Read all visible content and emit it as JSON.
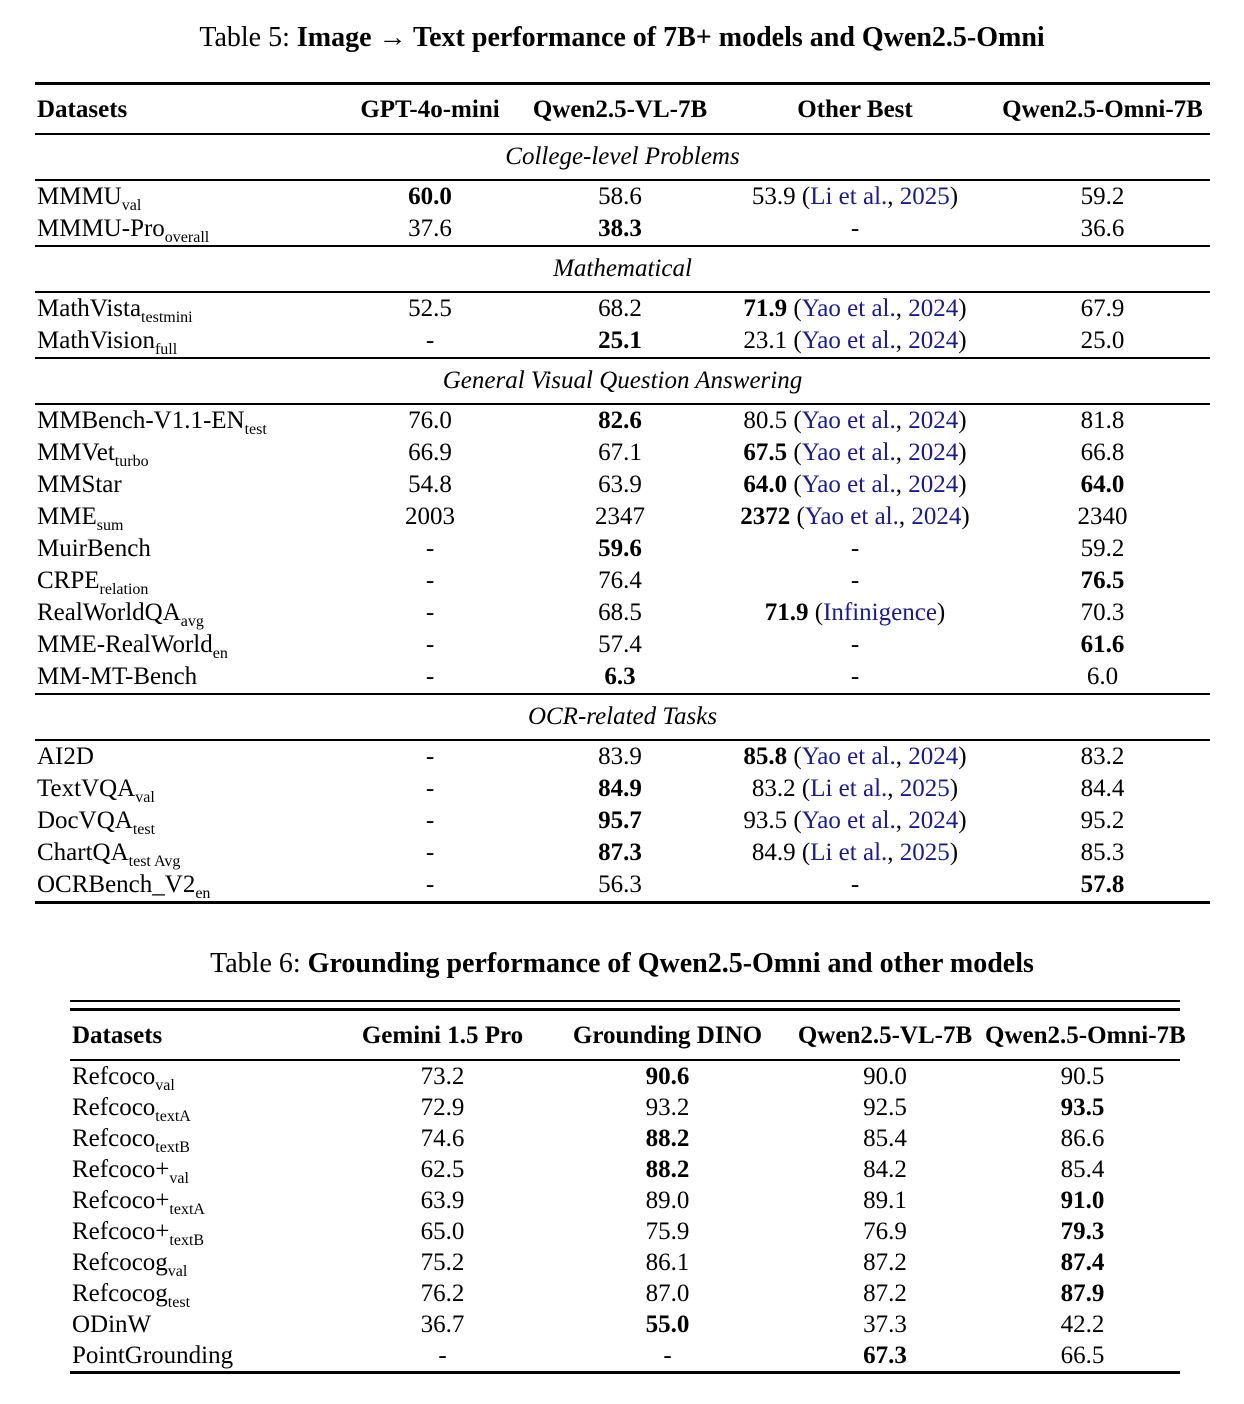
{
  "colors": {
    "citation_blue": "#191996",
    "text": "#000000",
    "background": "#ffffff"
  },
  "tables": [
    {
      "id": "table5",
      "caption_prefix": "Table 5: ",
      "caption_title": "Image → Text performance of 7B+ models and Qwen2.5-Omni",
      "columns": [
        "Datasets",
        "GPT-4o-mini",
        "Qwen2.5-VL-7B",
        "Other Best",
        "Qwen2.5-Omni-7B"
      ],
      "sections": [
        {
          "title": "College-level Problems",
          "rows": [
            {
              "dataset": "MMMU",
              "sub": "val",
              "cells": [
                {
                  "v": "60.0",
                  "b": true
                },
                {
                  "v": "58.6"
                },
                {
                  "v": "53.9",
                  "cite": {
                    "a": "Li et al.",
                    "y": "2025"
                  }
                },
                {
                  "v": "59.2"
                }
              ]
            },
            {
              "dataset": "MMMU-Pro",
              "sub": "overall",
              "cells": [
                {
                  "v": "37.6"
                },
                {
                  "v": "38.3",
                  "b": true
                },
                {
                  "v": "-"
                },
                {
                  "v": "36.6"
                }
              ]
            }
          ]
        },
        {
          "title": "Mathematical",
          "rows": [
            {
              "dataset": "MathVista",
              "sub": "testmini",
              "cells": [
                {
                  "v": "52.5"
                },
                {
                  "v": "68.2"
                },
                {
                  "v": "71.9",
                  "b": true,
                  "cite": {
                    "a": "Yao et al.",
                    "y": "2024"
                  }
                },
                {
                  "v": "67.9"
                }
              ]
            },
            {
              "dataset": "MathVision",
              "sub": "full",
              "cells": [
                {
                  "v": "-"
                },
                {
                  "v": "25.1",
                  "b": true
                },
                {
                  "v": "23.1",
                  "cite": {
                    "a": "Yao et al.",
                    "y": "2024"
                  }
                },
                {
                  "v": "25.0"
                }
              ]
            }
          ]
        },
        {
          "title": "General Visual Question Answering",
          "rows": [
            {
              "dataset": "MMBench-V1.1-EN",
              "sub": "test",
              "cells": [
                {
                  "v": "76.0"
                },
                {
                  "v": "82.6",
                  "b": true
                },
                {
                  "v": "80.5",
                  "cite": {
                    "a": "Yao et al.",
                    "y": "2024"
                  }
                },
                {
                  "v": "81.8"
                }
              ]
            },
            {
              "dataset": "MMVet",
              "sub": "turbo",
              "cells": [
                {
                  "v": "66.9"
                },
                {
                  "v": "67.1"
                },
                {
                  "v": "67.5",
                  "b": true,
                  "cite": {
                    "a": "Yao et al.",
                    "y": "2024"
                  }
                },
                {
                  "v": "66.8"
                }
              ]
            },
            {
              "dataset": "MMStar",
              "cells": [
                {
                  "v": "54.8"
                },
                {
                  "v": "63.9"
                },
                {
                  "v": "64.0",
                  "b": true,
                  "cite": {
                    "a": "Yao et al.",
                    "y": "2024"
                  }
                },
                {
                  "v": "64.0",
                  "b": true
                }
              ]
            },
            {
              "dataset": "MME",
              "sub": "sum",
              "cells": [
                {
                  "v": "2003"
                },
                {
                  "v": "2347"
                },
                {
                  "v": "2372",
                  "b": true,
                  "cite": {
                    "a": "Yao et al.",
                    "y": "2024"
                  }
                },
                {
                  "v": "2340"
                }
              ]
            },
            {
              "dataset": "MuirBench",
              "cells": [
                {
                  "v": "-"
                },
                {
                  "v": "59.6",
                  "b": true
                },
                {
                  "v": "-"
                },
                {
                  "v": "59.2"
                }
              ]
            },
            {
              "dataset": "CRPE",
              "sub": "relation",
              "cells": [
                {
                  "v": "-"
                },
                {
                  "v": "76.4"
                },
                {
                  "v": "-"
                },
                {
                  "v": "76.5",
                  "b": true
                }
              ]
            },
            {
              "dataset": "RealWorldQA",
              "sub": "avg",
              "cells": [
                {
                  "v": "-"
                },
                {
                  "v": "68.5"
                },
                {
                  "v": "71.9",
                  "b": true,
                  "cite": {
                    "a": "Infinigence"
                  }
                },
                {
                  "v": "70.3"
                }
              ]
            },
            {
              "dataset": "MME-RealWorld",
              "sub": "en",
              "cells": [
                {
                  "v": "-"
                },
                {
                  "v": "57.4"
                },
                {
                  "v": "-"
                },
                {
                  "v": "61.6",
                  "b": true
                }
              ]
            },
            {
              "dataset": "MM-MT-Bench",
              "cells": [
                {
                  "v": "-"
                },
                {
                  "v": "6.3",
                  "b": true
                },
                {
                  "v": "-"
                },
                {
                  "v": "6.0"
                }
              ]
            }
          ]
        },
        {
          "title": "OCR-related Tasks",
          "rows": [
            {
              "dataset": "AI2D",
              "cells": [
                {
                  "v": "-"
                },
                {
                  "v": "83.9"
                },
                {
                  "v": "85.8",
                  "b": true,
                  "cite": {
                    "a": "Yao et al.",
                    "y": "2024"
                  }
                },
                {
                  "v": "83.2"
                }
              ]
            },
            {
              "dataset": "TextVQA",
              "sub": "val",
              "cells": [
                {
                  "v": "-"
                },
                {
                  "v": "84.9",
                  "b": true
                },
                {
                  "v": "83.2",
                  "cite": {
                    "a": "Li et al.",
                    "y": "2025"
                  }
                },
                {
                  "v": "84.4"
                }
              ]
            },
            {
              "dataset": "DocVQA",
              "sub": "test",
              "cells": [
                {
                  "v": "-"
                },
                {
                  "v": "95.7",
                  "b": true
                },
                {
                  "v": "93.5",
                  "cite": {
                    "a": "Yao et al.",
                    "y": "2024"
                  }
                },
                {
                  "v": "95.2"
                }
              ]
            },
            {
              "dataset": "ChartQA",
              "sub": "test Avg",
              "cells": [
                {
                  "v": "-"
                },
                {
                  "v": "87.3",
                  "b": true
                },
                {
                  "v": "84.9",
                  "cite": {
                    "a": "Li et al.",
                    "y": "2025"
                  }
                },
                {
                  "v": "85.3"
                }
              ]
            },
            {
              "dataset": "OCRBench_V2",
              "sub": "en",
              "cells": [
                {
                  "v": "-"
                },
                {
                  "v": "56.3"
                },
                {
                  "v": "-"
                },
                {
                  "v": "57.8",
                  "b": true
                }
              ]
            }
          ]
        }
      ]
    },
    {
      "id": "table6",
      "caption_prefix": "Table 6: ",
      "caption_title": "Grounding performance of Qwen2.5-Omni and other models",
      "columns": [
        "Datasets",
        "Gemini 1.5 Pro",
        "Grounding DINO",
        "Qwen2.5-VL-7B",
        "Qwen2.5-Omni-7B"
      ],
      "rows": [
        {
          "dataset": "Refcoco",
          "sub": "val",
          "cells": [
            {
              "v": "73.2"
            },
            {
              "v": "90.6",
              "b": true
            },
            {
              "v": "90.0"
            },
            {
              "v": "90.5"
            }
          ]
        },
        {
          "dataset": "Refcoco",
          "sub": "textA",
          "cells": [
            {
              "v": "72.9"
            },
            {
              "v": "93.2"
            },
            {
              "v": "92.5"
            },
            {
              "v": "93.5",
              "b": true
            }
          ]
        },
        {
          "dataset": "Refcoco",
          "sub": "textB",
          "cells": [
            {
              "v": "74.6"
            },
            {
              "v": "88.2",
              "b": true
            },
            {
              "v": "85.4"
            },
            {
              "v": "86.6"
            }
          ]
        },
        {
          "dataset": "Refcoco+",
          "sub": "val",
          "cells": [
            {
              "v": "62.5"
            },
            {
              "v": "88.2",
              "b": true
            },
            {
              "v": "84.2"
            },
            {
              "v": "85.4"
            }
          ]
        },
        {
          "dataset": "Refcoco+",
          "sub": "textA",
          "cells": [
            {
              "v": "63.9"
            },
            {
              "v": "89.0"
            },
            {
              "v": "89.1"
            },
            {
              "v": "91.0",
              "b": true
            }
          ]
        },
        {
          "dataset": "Refcoco+",
          "sub": "textB",
          "cells": [
            {
              "v": "65.0"
            },
            {
              "v": "75.9"
            },
            {
              "v": "76.9"
            },
            {
              "v": "79.3",
              "b": true
            }
          ]
        },
        {
          "dataset": "Refcocog",
          "sub": "val",
          "cells": [
            {
              "v": "75.2"
            },
            {
              "v": "86.1"
            },
            {
              "v": "87.2"
            },
            {
              "v": "87.4",
              "b": true
            }
          ]
        },
        {
          "dataset": "Refcocog",
          "sub": "test",
          "cells": [
            {
              "v": "76.2"
            },
            {
              "v": "87.0"
            },
            {
              "v": "87.2"
            },
            {
              "v": "87.9",
              "b": true
            }
          ]
        },
        {
          "dataset": "ODinW",
          "cells": [
            {
              "v": "36.7"
            },
            {
              "v": "55.0",
              "b": true
            },
            {
              "v": "37.3"
            },
            {
              "v": "42.2"
            }
          ]
        },
        {
          "dataset": "PointGrounding",
          "cells": [
            {
              "v": "-"
            },
            {
              "v": "-"
            },
            {
              "v": "67.3",
              "b": true
            },
            {
              "v": "66.5"
            }
          ]
        }
      ]
    }
  ]
}
